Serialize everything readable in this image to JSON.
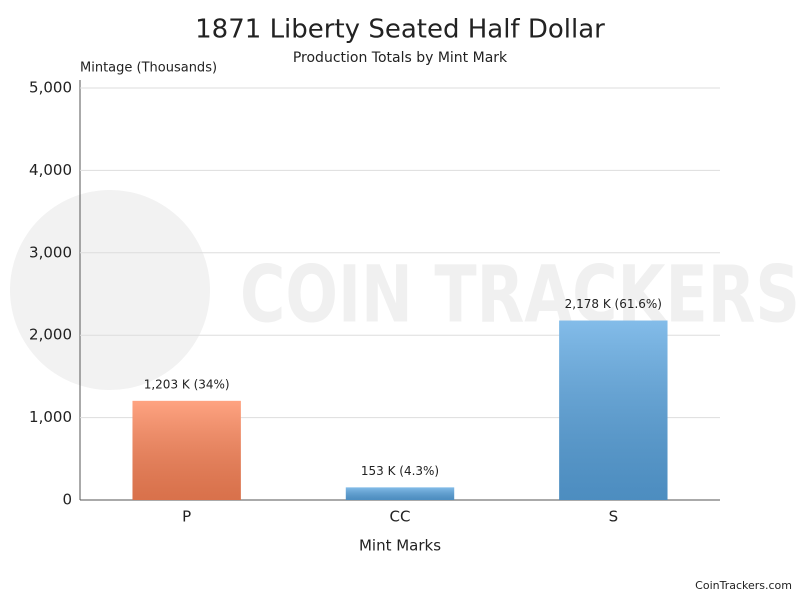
{
  "chart_data": {
    "type": "bar",
    "title": "1871 Liberty Seated Half Dollar",
    "subtitle": "Production Totals by Mint Mark",
    "y_axis_label": "Mintage (Thousands)",
    "x_axis_label": "Mint Marks",
    "categories": [
      "P",
      "CC",
      "S"
    ],
    "values": [
      1203,
      153,
      2178
    ],
    "value_labels": [
      "1,203 K (34%)",
      "153 K (4.3%)",
      "2,178 K (61.6%)"
    ],
    "colors": [
      "#ff8558",
      "#5aa6e2",
      "#5aa6e2"
    ],
    "ylim": [
      0,
      5000
    ],
    "yticks": [
      0,
      {
        "value": 1000,
        "label": "1,000"
      },
      {
        "value": 2000,
        "label": "2,000"
      },
      {
        "value": 3000,
        "label": "3,000"
      },
      {
        "value": 4000,
        "label": "4,000"
      },
      {
        "value": 5000,
        "label": "5,000"
      }
    ],
    "grid": true,
    "watermark": "COIN TRACKERS",
    "credit": "CoinTrackers.com"
  }
}
